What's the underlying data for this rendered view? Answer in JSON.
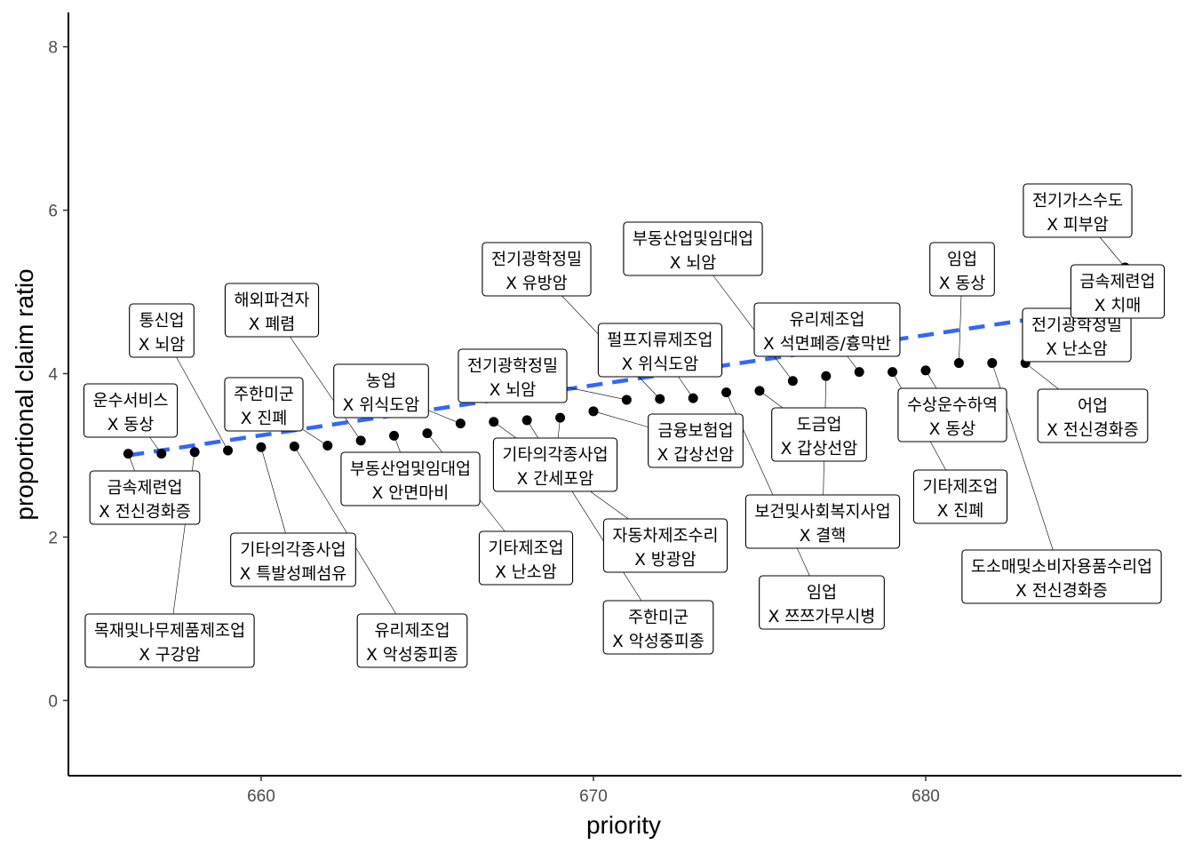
{
  "chart_data": {
    "type": "scatter",
    "xlabel": "priority",
    "ylabel": "proportional claim ratio",
    "xlim": [
      654.2,
      687.7
    ],
    "ylim": [
      -0.92,
      8.42
    ],
    "x_ticks": [
      660,
      670,
      680
    ],
    "y_ticks": [
      0,
      2,
      4,
      6,
      8
    ],
    "grid": false,
    "points": [
      {
        "x": 656,
        "y": 3.02,
        "label": [
          "금속제련업",
          "X 전신경화증"
        ]
      },
      {
        "x": 657,
        "y": 3.02,
        "label": [
          "운수서비스",
          "X 동상"
        ]
      },
      {
        "x": 658,
        "y": 3.04,
        "label": [
          "목재및나무제품제조업",
          "X 구강암"
        ]
      },
      {
        "x": 659,
        "y": 3.06,
        "label": [
          "통신업",
          "X 뇌암"
        ]
      },
      {
        "x": 660,
        "y": 3.1,
        "label": [
          "기타의각종사업",
          "X 특발성폐섬유"
        ]
      },
      {
        "x": 661,
        "y": 3.11,
        "label": [
          "유리제조업",
          "X 악성중피종"
        ]
      },
      {
        "x": 662,
        "y": 3.12,
        "label": [
          "주한미군",
          "X 진폐"
        ]
      },
      {
        "x": 663,
        "y": 3.18,
        "label": [
          "해외파견자",
          "X 폐렴"
        ]
      },
      {
        "x": 664,
        "y": 3.24,
        "label": [
          "부동산업및임대업",
          "X 안면마비"
        ]
      },
      {
        "x": 665,
        "y": 3.27,
        "label": [
          "기타제조업",
          "X 난소암"
        ]
      },
      {
        "x": 666,
        "y": 3.39,
        "label": [
          "농업",
          "X 위식도암"
        ]
      },
      {
        "x": 667,
        "y": 3.41,
        "label": [
          "자동차제조수리",
          "X 방광암"
        ]
      },
      {
        "x": 668,
        "y": 3.43,
        "label": [
          "주한미군",
          "X 악성중피종"
        ]
      },
      {
        "x": 669,
        "y": 3.46,
        "label": [
          "기타의각종사업",
          "X 간세포암"
        ]
      },
      {
        "x": 670,
        "y": 3.54,
        "label": [
          "금융보험업",
          "X 갑상선암"
        ]
      },
      {
        "x": 671,
        "y": 3.68,
        "label": [
          "전기광학정밀",
          "X 뇌암"
        ]
      },
      {
        "x": 672,
        "y": 3.69,
        "label": [
          "전기광학정밀",
          "X 유방암"
        ]
      },
      {
        "x": 673,
        "y": 3.7,
        "label": [
          "펄프지류제조업",
          "X 위식도암"
        ]
      },
      {
        "x": 674,
        "y": 3.77,
        "label": [
          "임업",
          "X 쯔쯔가무시병"
        ]
      },
      {
        "x": 675,
        "y": 3.79,
        "label": [
          "도금업",
          "X 갑상선암"
        ]
      },
      {
        "x": 676,
        "y": 3.91,
        "label": [
          "부동산업및임대업",
          "X 뇌암"
        ]
      },
      {
        "x": 677,
        "y": 3.97,
        "label": [
          "보건및사회복지사업",
          "X 결핵"
        ]
      },
      {
        "x": 678,
        "y": 4.02,
        "label": [
          "유리제조업",
          "X 석면폐증/흉막반"
        ]
      },
      {
        "x": 679,
        "y": 4.02,
        "label": [
          "기타제조업",
          "X 진폐"
        ]
      },
      {
        "x": 680,
        "y": 4.04,
        "label": [
          "수상운수하역",
          "X 동상"
        ]
      },
      {
        "x": 681,
        "y": 4.13,
        "label": [
          "임업",
          "X 동상"
        ]
      },
      {
        "x": 682,
        "y": 4.13,
        "label": [
          "도소매및소비자용품수리업",
          "X 전신경화증"
        ]
      },
      {
        "x": 683,
        "y": 4.13,
        "label": [
          "어업",
          "X 전신경화증"
        ]
      },
      {
        "x": 684,
        "y": 4.32,
        "label": [
          "전기광학정밀",
          "X 난소암"
        ]
      },
      {
        "x": 685,
        "y": 4.64,
        "label": [
          "금속제련업",
          "X 치매"
        ]
      },
      {
        "x": 686,
        "y": 5.3,
        "label": [
          "전기가스수도",
          "X 피부암"
        ]
      }
    ],
    "trend_line": {
      "style": "dashed",
      "color": "#3366ff",
      "x": [
        656,
        686
      ],
      "y": [
        3.0,
        4.84
      ]
    }
  }
}
